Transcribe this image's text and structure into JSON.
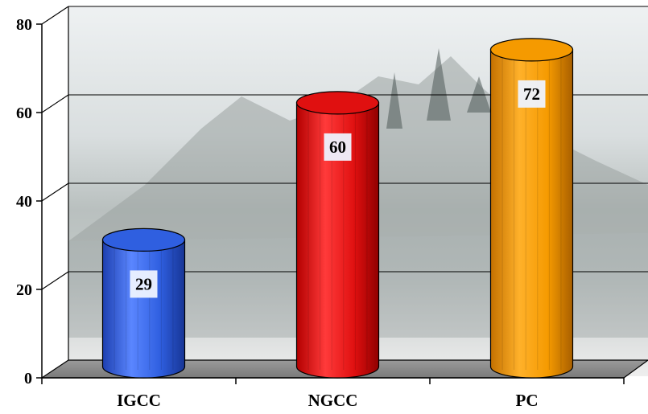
{
  "chart_data": {
    "type": "bar",
    "categories": [
      "IGCC",
      "NGCC",
      "PC"
    ],
    "values": [
      29,
      60,
      72
    ],
    "data_labels": [
      "29",
      "60",
      "72"
    ],
    "title": "",
    "xlabel": "",
    "ylabel": "",
    "ylim": [
      0,
      80
    ],
    "yticks": [
      "0",
      "20",
      "40",
      "60",
      "80"
    ],
    "grid": true,
    "legend": "none",
    "style": "3d-cylinder",
    "colors": [
      "#2f5fe0",
      "#e01010",
      "#f59a00"
    ],
    "background": "landscape-photo"
  }
}
